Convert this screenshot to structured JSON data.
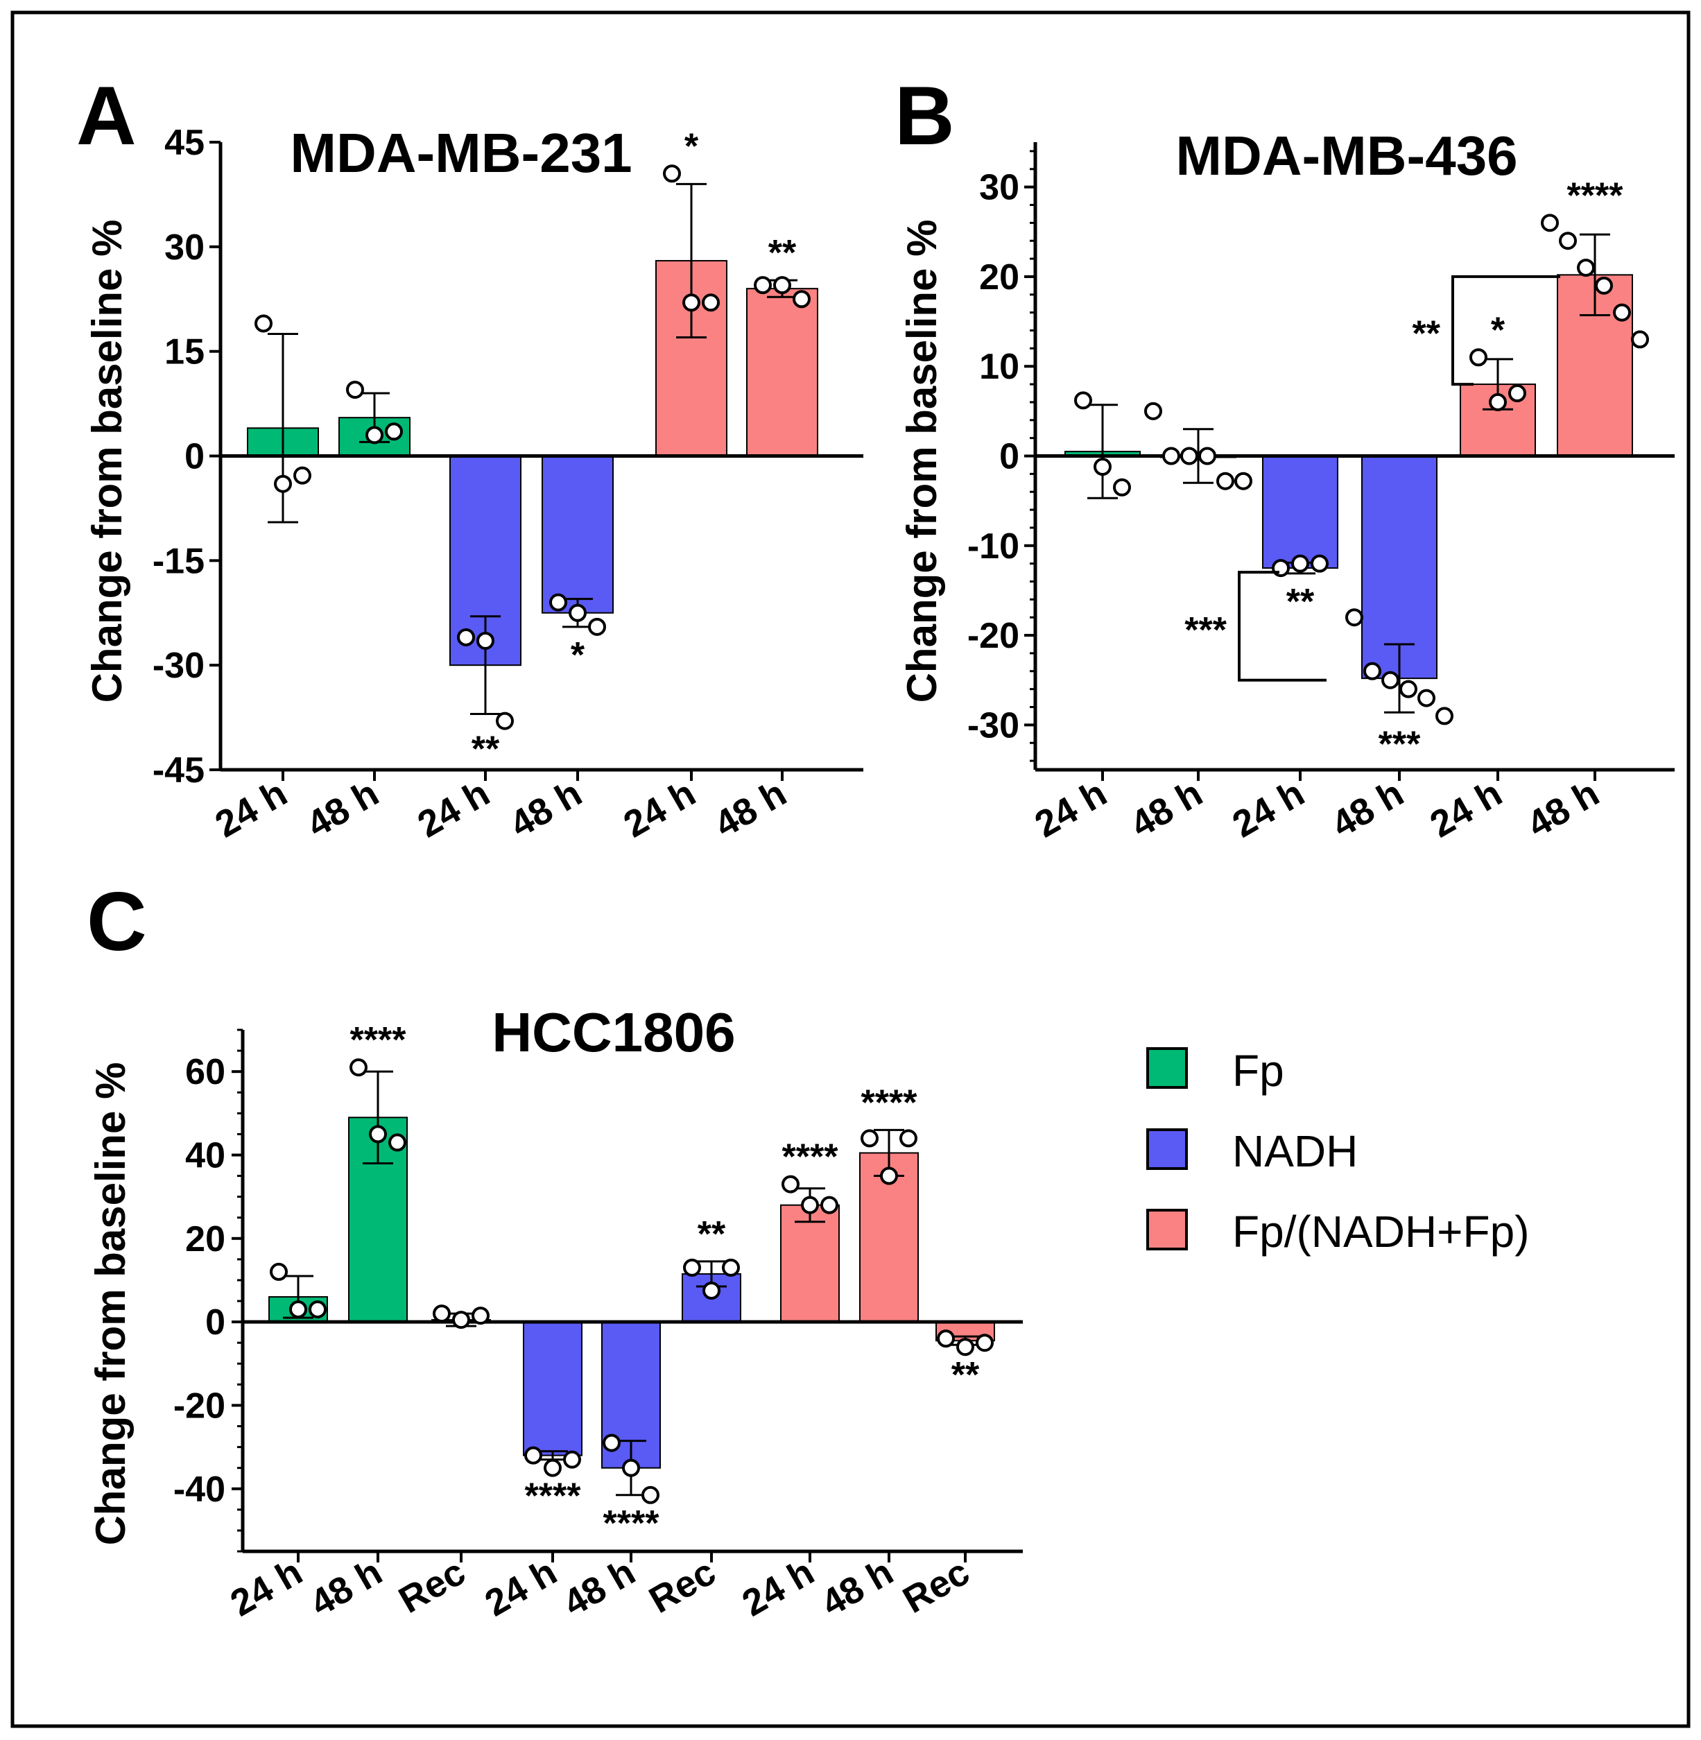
{
  "colors": {
    "Fp": "#00b975",
    "NADH": "#5a5af5",
    "Fp/(NADH+Fp)": "#fa8282",
    "axis": "#000000"
  },
  "legend": {
    "items": [
      {
        "label": "Fp",
        "color": "#00b975"
      },
      {
        "label": "NADH",
        "color": "#5a5af5"
      },
      {
        "label": "Fp/(NADH+Fp)",
        "color": "#fa8282"
      }
    ]
  },
  "chart_data": [
    {
      "panel": "A",
      "type": "bar",
      "title": "MDA-MB-231",
      "ylabel": "Change from baseline %",
      "xlabel": "",
      "ylim": [
        -45,
        45
      ],
      "yticks": [
        "45",
        "30",
        "15",
        "0",
        "-15",
        "-30",
        "-45"
      ],
      "categories": [
        "24 h",
        "48 h",
        "24 h",
        "48 h",
        "24 h",
        "48 h"
      ],
      "groups": [
        "Fp",
        "Fp",
        "NADH",
        "NADH",
        "Fp/(NADH+Fp)",
        "Fp/(NADH+Fp)"
      ],
      "values": [
        4,
        5.5,
        -30,
        -22.5,
        28,
        24
      ],
      "errors": [
        13.5,
        3.5,
        7,
        2,
        11,
        1.2
      ],
      "points": [
        [
          19,
          -4,
          -2.8
        ],
        [
          9.5,
          3,
          3.5
        ],
        [
          -26,
          -26.5,
          -38
        ],
        [
          -21,
          -22.5,
          -24.5
        ],
        [
          40.5,
          22,
          22
        ],
        [
          24.5,
          24.5,
          22.5
        ]
      ],
      "significance": [
        "",
        "",
        "**",
        "*",
        "*",
        "**"
      ],
      "brackets": []
    },
    {
      "panel": "B",
      "type": "bar",
      "title": "MDA-MB-436",
      "ylabel": "Change from baseline %",
      "xlabel": "",
      "ylim": [
        -35,
        35
      ],
      "yticks": [
        "30",
        "20",
        "10",
        "0",
        "-10",
        "-20",
        "-30"
      ],
      "categories": [
        "24 h",
        "48 h",
        "24 h",
        "48 h",
        "24 h",
        "48 h"
      ],
      "groups": [
        "Fp",
        "Fp",
        "NADH",
        "NADH",
        "Fp/(NADH+Fp)",
        "Fp/(NADH+Fp)"
      ],
      "values": [
        0.5,
        0,
        -12.5,
        -24.8,
        8,
        20.2
      ],
      "errors": [
        5.2,
        3,
        0.6,
        3.8,
        2.8,
        4.5
      ],
      "points": [
        [
          6.2,
          -1.2,
          -3.5
        ],
        [
          5,
          0,
          0,
          0,
          -2.8,
          -2.8
        ],
        [
          -12.5,
          -12,
          -12
        ],
        [
          -18,
          -24,
          -25,
          -26,
          -27,
          -29
        ],
        [
          11,
          6,
          7
        ],
        [
          26,
          24,
          21,
          19,
          16,
          13
        ]
      ],
      "significance": [
        "",
        "",
        "**",
        "***",
        "*",
        "****"
      ],
      "brackets": [
        {
          "label": "***",
          "from": 2,
          "to": 3,
          "side": "left"
        },
        {
          "label": "**",
          "from": 4,
          "to": 5,
          "side": "left"
        }
      ]
    },
    {
      "panel": "C",
      "type": "bar",
      "title": "HCC1806",
      "ylabel": "Change from baseline %",
      "xlabel": "",
      "ylim": [
        -55,
        70
      ],
      "yticks": [
        "60",
        "40",
        "20",
        "0",
        "-20",
        "-40"
      ],
      "categories": [
        "24 h",
        "48 h",
        "Rec",
        "24 h",
        "48 h",
        "Rec",
        "24 h",
        "48 h",
        "Rec"
      ],
      "groups": [
        "Fp",
        "Fp",
        "Fp",
        "NADH",
        "NADH",
        "NADH",
        "Fp/(NADH+Fp)",
        "Fp/(NADH+Fp)",
        "Fp/(NADH+Fp)"
      ],
      "values": [
        6,
        49,
        0.5,
        -32,
        -35,
        11.5,
        28,
        40.5,
        -4.5
      ],
      "errors": [
        5,
        11,
        1.5,
        1,
        6.5,
        3,
        4,
        5.5,
        1
      ],
      "points": [
        [
          12,
          3,
          3
        ],
        [
          61,
          45,
          43
        ],
        [
          2,
          0.5,
          1.5
        ],
        [
          -32,
          -35,
          -33
        ],
        [
          -29,
          -35,
          -41.5
        ],
        [
          13,
          7.5,
          13
        ],
        [
          33,
          28,
          28
        ],
        [
          44,
          35,
          44
        ],
        [
          -4,
          -6,
          -5
        ]
      ],
      "significance": [
        "",
        "****",
        "",
        "****",
        "****",
        "**",
        "****",
        "****",
        "**"
      ],
      "brackets": []
    }
  ]
}
